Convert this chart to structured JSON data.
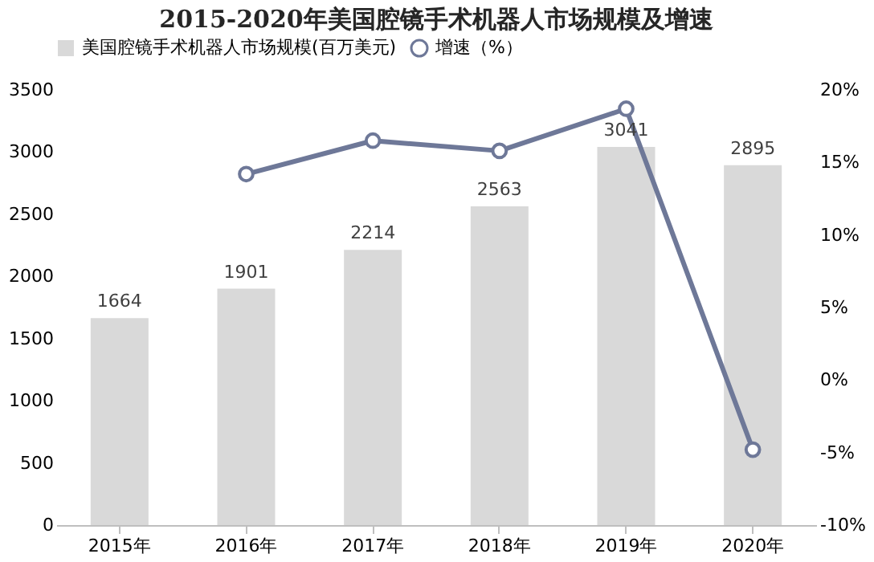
{
  "chart_data": {
    "type": "bar",
    "title": "2015-2020年美国腔镜手术机器人市场规模及增速",
    "categories": [
      "2015年",
      "2016年",
      "2017年",
      "2018年",
      "2019年",
      "2020年"
    ],
    "series": [
      {
        "name": "美国腔镜手术机器人市场规模(百万美元)",
        "color": "#d9d9d9",
        "values": [
          1664,
          1901,
          2214,
          2563,
          3041,
          2895
        ],
        "value_labels": [
          "1664",
          "1901",
          "2214",
          "2563",
          "3041",
          "2895"
        ]
      },
      {
        "name": "增速（%）",
        "type": "line",
        "axis": "y2",
        "color": "#6e7898",
        "marker": "circle",
        "values": [
          null,
          14.2,
          16.5,
          15.8,
          18.7,
          -4.8
        ]
      }
    ],
    "ylim": [
      0,
      3500
    ],
    "yticks": [
      0,
      500,
      1000,
      1500,
      2000,
      2500,
      3000,
      3500
    ],
    "y2lim": [
      -10,
      20
    ],
    "y2ticks": [
      {
        "value": -10,
        "label": "-10%"
      },
      {
        "value": -5,
        "label": "-5%"
      },
      {
        "value": 0,
        "label": "0%"
      },
      {
        "value": 5,
        "label": "5%"
      },
      {
        "value": 10,
        "label": "10%"
      },
      {
        "value": 15,
        "label": "15%"
      },
      {
        "value": 20,
        "label": "20%"
      }
    ],
    "legend": "top",
    "grid": false
  }
}
